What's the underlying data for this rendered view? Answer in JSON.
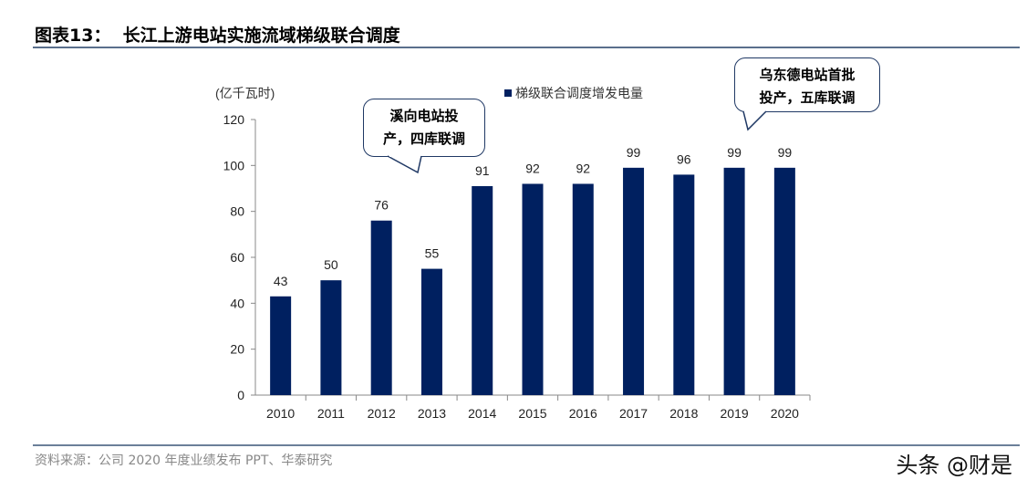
{
  "header": {
    "title": "图表13：  长江上游电站实施流域梯级联合调度"
  },
  "footer": {
    "source": "资料来源：公司 2020 年度业绩发布 PPT、华泰研究",
    "watermark": "头条 @财是"
  },
  "chart_data": {
    "type": "bar",
    "unit_label": "(亿千瓦时)",
    "categories": [
      "2010",
      "2011",
      "2012",
      "2013",
      "2014",
      "2015",
      "2016",
      "2017",
      "2018",
      "2019",
      "2020"
    ],
    "series": [
      {
        "name": "梯级联合调度增发电量",
        "values": [
          43,
          50,
          76,
          55,
          91,
          92,
          92,
          99,
          96,
          99,
          99
        ],
        "color": "#002060"
      }
    ],
    "ylim": [
      0,
      120
    ],
    "yticks": [
      0,
      20,
      40,
      60,
      80,
      100,
      120
    ],
    "grid": false,
    "legend": "top",
    "annotations": [
      {
        "text": "溪向电站投产，四库联调",
        "lines": [
          "溪向电站投",
          "产，四库联调"
        ]
      },
      {
        "text": "乌东德电站首批投产，五库联调",
        "lines": [
          "乌东德电站首批",
          "投产，五库联调"
        ]
      }
    ]
  }
}
